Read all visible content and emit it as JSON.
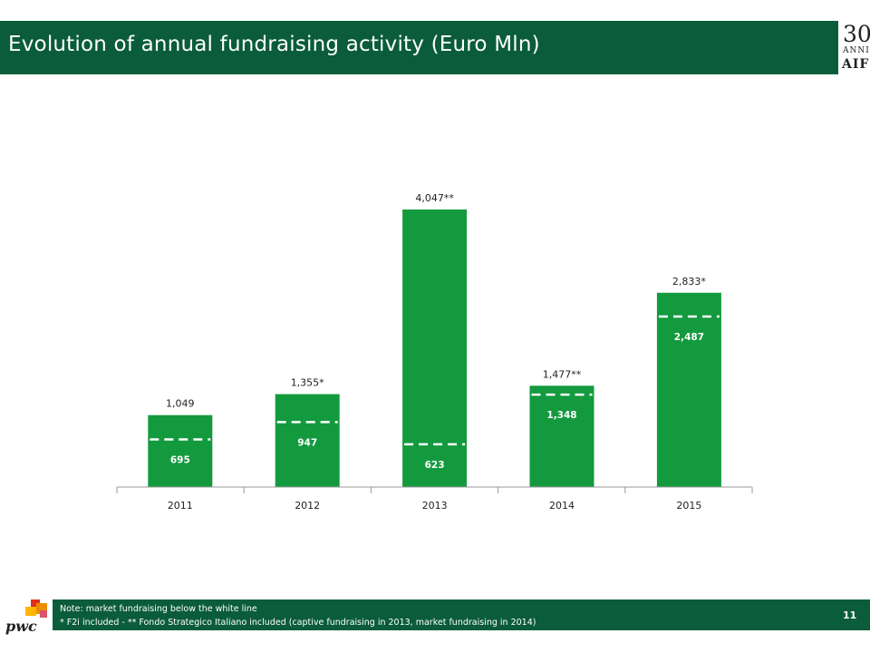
{
  "header": {
    "title": "Evolution of annual fundraising activity (Euro Mln)"
  },
  "logo": {
    "number": "30",
    "anni": "ANNI",
    "name": "AIFI"
  },
  "chart_data": {
    "type": "bar",
    "categories": [
      "2011",
      "2012",
      "2013",
      "2014",
      "2015"
    ],
    "totals": [
      1049,
      1355,
      4047,
      1477,
      2833
    ],
    "total_labels": [
      "1,049",
      "1,355*",
      "4,047**",
      "1,477**",
      "2,833*"
    ],
    "market": [
      695,
      947,
      623,
      1348,
      2487
    ],
    "market_labels": [
      "695",
      "947",
      "623",
      "1,348",
      "2,487"
    ],
    "ylim": [
      0,
      4300
    ],
    "bar_color": "#139a3e",
    "grid": false
  },
  "footer": {
    "note_line1": "Note: market fundraising below the white line",
    "note_line2": "* F2i included - ** Fondo Strategico Italiano  included (captive fundraising in 2013, market fundraising in 2014)",
    "page_number": "11"
  },
  "pwc": {
    "text": "pwc"
  }
}
